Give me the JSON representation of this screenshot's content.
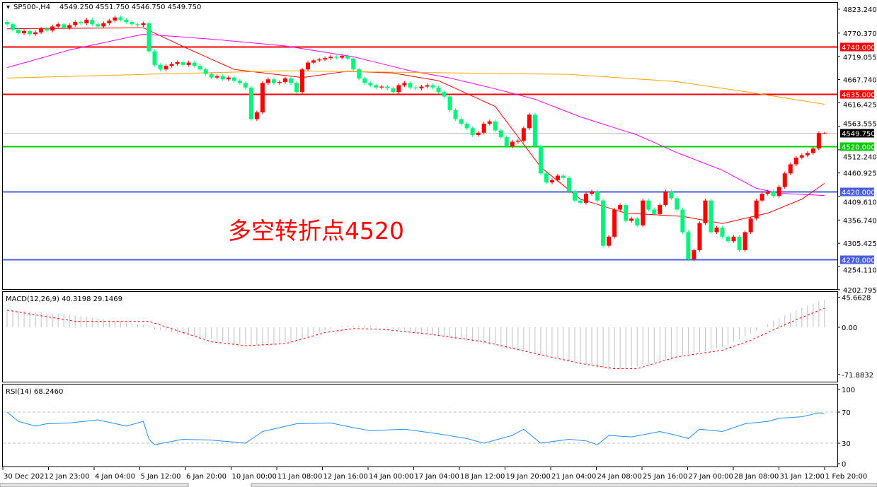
{
  "header": {
    "symbol": "SP500-,H4",
    "ohlc": "4549.250 4551.750 4546.750 4549.750"
  },
  "annotation": "多空转折点4520",
  "colors": {
    "up": "#ff0000",
    "down": "#00f57a",
    "ma_fast": "#ff0000",
    "ma_mid": "#ff00ff",
    "ma_slow": "#ffa500",
    "resistance": "#ff0000",
    "pivot": "#00cc00",
    "support": "#4a5fe0",
    "rsi": "#1e8fff",
    "macd_hist": "#c0c0c0",
    "macd_signal": "#ff0000"
  },
  "chart_data": [
    {
      "type": "candlestick",
      "title": "SP500-,H4",
      "price_axis_ticks": [
        "4823.240",
        "4770.370",
        "4719.055",
        "4667.740",
        "4616.425",
        "4563.555",
        "4512.240",
        "4460.925",
        "4409.610",
        "4356.740",
        "4305.425",
        "4254.110",
        "4202.795"
      ],
      "ylim": [
        4202.795,
        4823.24
      ],
      "time_axis_ticks": [
        "30 Dec 2021",
        "2 Jan 23:00",
        "4 Jan 04:00",
        "5 Jan 12:00",
        "6 Jan 20:00",
        "10 Jan 00:00",
        "11 Jan 08:00",
        "12 Jan 16:00",
        "14 Jan 00:00",
        "17 Jan 04:00",
        "18 Jan 12:00",
        "19 Jan 20:00",
        "21 Jan 04:00",
        "24 Jan 08:00",
        "25 Jan 16:00",
        "27 Jan 00:00",
        "28 Jan 08:00",
        "31 Jan 12:00",
        "1 Feb 20:00"
      ],
      "closes": [
        4790,
        4778,
        4770,
        4775,
        4768,
        4772,
        4780,
        4776,
        4785,
        4790,
        4782,
        4788,
        4795,
        4792,
        4800,
        4790,
        4785,
        4792,
        4798,
        4805,
        4800,
        4795,
        4790,
        4788,
        4792,
        4730,
        4700,
        4690,
        4698,
        4702,
        4706,
        4700,
        4705,
        4698,
        4690,
        4680,
        4672,
        4675,
        4668,
        4672,
        4665,
        4660,
        4650,
        4580,
        4595,
        4660,
        4668,
        4660,
        4662,
        4670,
        4660,
        4640,
        4690,
        4705,
        4710,
        4712,
        4715,
        4718,
        4716,
        4720,
        4714,
        4690,
        4670,
        4660,
        4655,
        4650,
        4652,
        4648,
        4640,
        4655,
        4660,
        4650,
        4648,
        4652,
        4655,
        4650,
        4640,
        4630,
        4600,
        4580,
        4570,
        4560,
        4545,
        4550,
        4570,
        4575,
        4555,
        4540,
        4520,
        4530,
        4532,
        4560,
        4590,
        4520,
        4460,
        4440,
        4445,
        4455,
        4450,
        4420,
        4400,
        4395,
        4415,
        4420,
        4400,
        4300,
        4320,
        4380,
        4390,
        4355,
        4360,
        4345,
        4400,
        4380,
        4370,
        4390,
        4420,
        4405,
        4380,
        4330,
        4270,
        4290,
        4350,
        4400,
        4330,
        4340,
        4320,
        4310,
        4320,
        4290,
        4330,
        4360,
        4400,
        4415,
        4420,
        4410,
        4430,
        4460,
        4480,
        4495,
        4500,
        4505,
        4515,
        4549.25,
        4549.75
      ],
      "last_candle": {
        "open": 4549.25,
        "high": 4551.75,
        "low": 4546.75,
        "close": 4549.75
      },
      "moving_averages": [
        {
          "color": "#ff0000",
          "points": [
            [
              0,
              4780
            ],
            [
              24,
              4782
            ],
            [
              32,
              4735
            ],
            [
              40,
              4690
            ],
            [
              52,
              4672
            ],
            [
              60,
              4686
            ],
            [
              68,
              4682
            ],
            [
              76,
              4665
            ],
            [
              86,
              4608
            ],
            [
              94,
              4474
            ],
            [
              101,
              4403
            ],
            [
              109,
              4372
            ],
            [
              119,
              4365
            ],
            [
              126,
              4349
            ],
            [
              134,
              4372
            ],
            [
              140,
              4403
            ],
            [
              144,
              4438
            ]
          ]
        },
        {
          "color": "#ff00ff",
          "points": [
            [
              0,
              4694
            ],
            [
              11,
              4733
            ],
            [
              24,
              4768
            ],
            [
              36,
              4757
            ],
            [
              49,
              4742
            ],
            [
              61,
              4718
            ],
            [
              71,
              4687
            ],
            [
              78,
              4671
            ],
            [
              86,
              4647
            ],
            [
              93,
              4624
            ],
            [
              101,
              4585
            ],
            [
              111,
              4545
            ],
            [
              118,
              4506
            ],
            [
              126,
              4467
            ],
            [
              132,
              4427
            ],
            [
              136,
              4416
            ],
            [
              144,
              4411
            ]
          ]
        },
        {
          "color": "#ffa500",
          "points": [
            [
              0,
              4671
            ],
            [
              24,
              4679
            ],
            [
              49,
              4687
            ],
            [
              74,
              4683
            ],
            [
              99,
              4679
            ],
            [
              118,
              4663
            ],
            [
              131,
              4639
            ],
            [
              144,
              4613
            ]
          ]
        }
      ],
      "horizontal_levels": [
        {
          "value": 4740.0,
          "label": "4740.000",
          "color": "#ff0000"
        },
        {
          "value": 4635.0,
          "label": "4635.000",
          "color": "#ff0000"
        },
        {
          "value": 4520.0,
          "label": "4520.000",
          "color": "#00cc00"
        },
        {
          "value": 4420.0,
          "label": "4420.000",
          "color": "#4a5fe0"
        },
        {
          "value": 4270.0,
          "label": "4270.000",
          "color": "#4a5fe0"
        }
      ],
      "current_price": {
        "value": 4549.75,
        "label": "4549.750"
      }
    },
    {
      "type": "bar",
      "title": "MACD(12,26,9) 40.3198 29.1469",
      "axis_ticks": [
        "45.6628",
        "0.00",
        "-71.8832"
      ],
      "ylim": [
        -71.8832,
        45.6628
      ],
      "histogram_points": [
        [
          0,
          27
        ],
        [
          12,
          18
        ],
        [
          25,
          2
        ],
        [
          26,
          -3
        ],
        [
          31,
          -10
        ],
        [
          40,
          -25
        ],
        [
          46,
          -28
        ],
        [
          51,
          -20
        ],
        [
          56,
          -5
        ],
        [
          59,
          2
        ],
        [
          64,
          3
        ],
        [
          67,
          -1
        ],
        [
          74,
          -10
        ],
        [
          84,
          -25
        ],
        [
          93,
          -40
        ],
        [
          101,
          -55
        ],
        [
          106,
          -65
        ],
        [
          111,
          -60
        ],
        [
          118,
          -45
        ],
        [
          126,
          -30
        ],
        [
          131,
          -10
        ],
        [
          135,
          10
        ],
        [
          140,
          30
        ],
        [
          144,
          42
        ]
      ],
      "signal_points": [
        [
          0,
          26
        ],
        [
          12,
          9
        ],
        [
          25,
          9
        ],
        [
          36,
          -22
        ],
        [
          42,
          -28
        ],
        [
          49,
          -25
        ],
        [
          56,
          -8
        ],
        [
          61,
          -2
        ],
        [
          66,
          -3
        ],
        [
          74,
          -10
        ],
        [
          84,
          -22
        ],
        [
          93,
          -40
        ],
        [
          101,
          -55
        ],
        [
          107,
          -63
        ],
        [
          111,
          -63
        ],
        [
          118,
          -45
        ],
        [
          126,
          -35
        ],
        [
          131,
          -20
        ],
        [
          136,
          0
        ],
        [
          140,
          15
        ],
        [
          144,
          29
        ]
      ]
    },
    {
      "type": "line",
      "title": "RSI(14) 68.2460",
      "axis_ticks": [
        "100",
        "70",
        "30",
        "0"
      ],
      "ylim": [
        0,
        100
      ],
      "levels": [
        70,
        30
      ],
      "points": [
        [
          0,
          70
        ],
        [
          2,
          58
        ],
        [
          5,
          52
        ],
        [
          7,
          55
        ],
        [
          11,
          56
        ],
        [
          16,
          60
        ],
        [
          21,
          52
        ],
        [
          24,
          58
        ],
        [
          25,
          35
        ],
        [
          26,
          28
        ],
        [
          31,
          35
        ],
        [
          36,
          34
        ],
        [
          42,
          30
        ],
        [
          45,
          45
        ],
        [
          51,
          55
        ],
        [
          57,
          56
        ],
        [
          61,
          50
        ],
        [
          64,
          46
        ],
        [
          70,
          48
        ],
        [
          76,
          42
        ],
        [
          81,
          36
        ],
        [
          84,
          30
        ],
        [
          89,
          40
        ],
        [
          91,
          48
        ],
        [
          94,
          30
        ],
        [
          99,
          35
        ],
        [
          102,
          33
        ],
        [
          104,
          28
        ],
        [
          106,
          40
        ],
        [
          110,
          38
        ],
        [
          115,
          45
        ],
        [
          118,
          40
        ],
        [
          120,
          36
        ],
        [
          122,
          48
        ],
        [
          126,
          45
        ],
        [
          130,
          55
        ],
        [
          134,
          58
        ],
        [
          136,
          62
        ],
        [
          140,
          64
        ],
        [
          143,
          69
        ],
        [
          144,
          68.2
        ]
      ]
    }
  ]
}
